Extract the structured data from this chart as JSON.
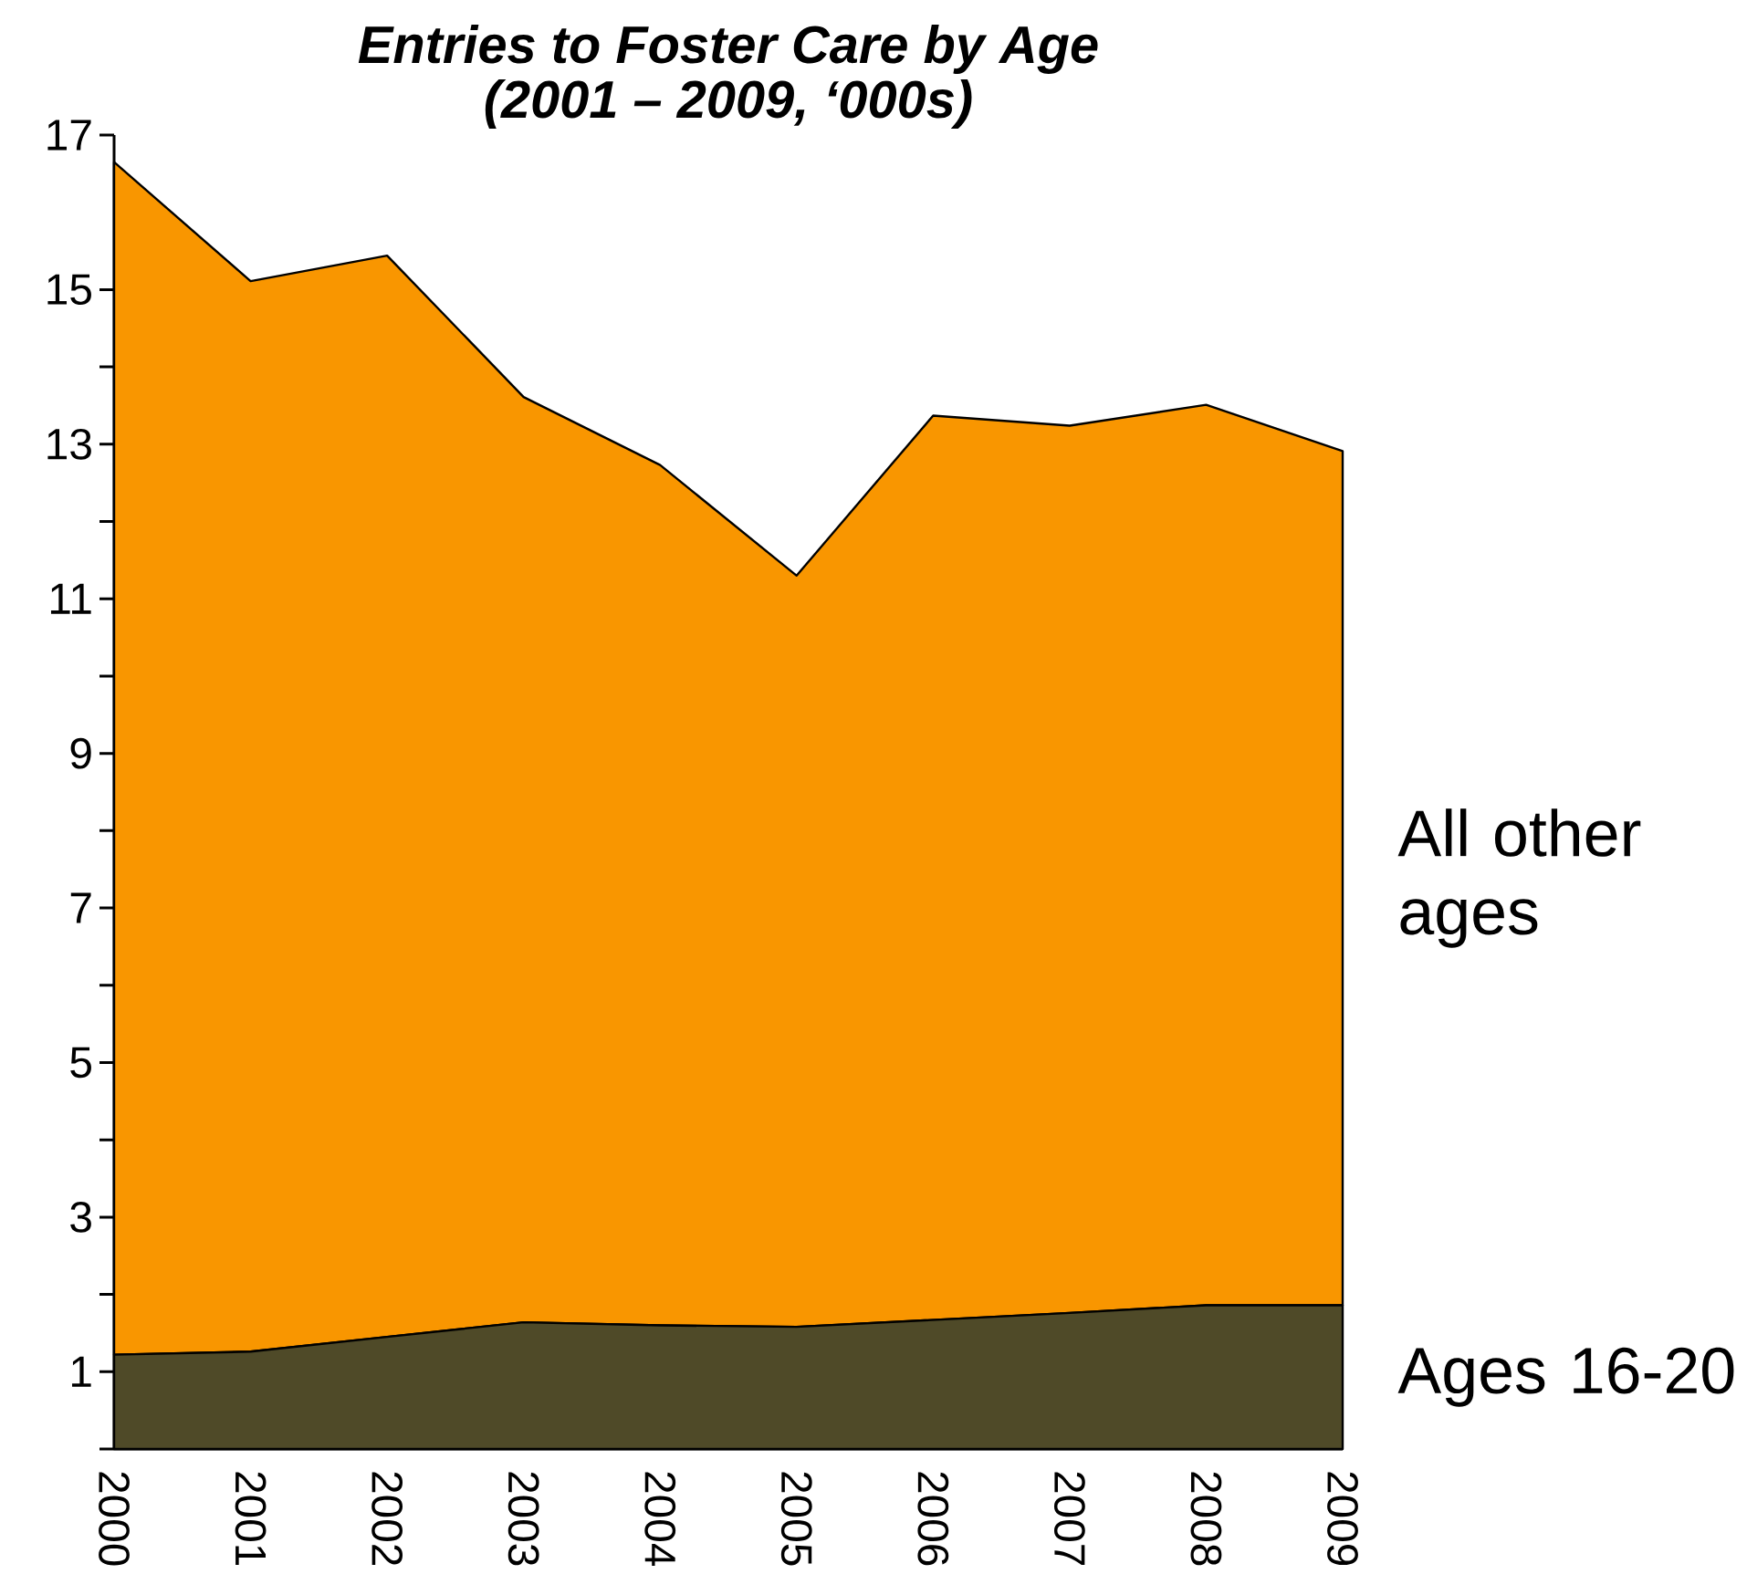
{
  "chart_data": {
    "type": "area",
    "title": "Entries to Foster Care by Age",
    "subtitle": "(2001 – 2009, ‘000s)",
    "categories": [
      "2000",
      "2001",
      "2002",
      "2003",
      "2004",
      "2005",
      "2006",
      "2007",
      "2008",
      "2009"
    ],
    "stacked": true,
    "series": [
      {
        "name": "Ages 16-20",
        "color": "#4f4a28",
        "values": [
          1.22,
          1.26,
          1.45,
          1.64,
          1.6,
          1.58,
          1.67,
          1.76,
          1.86,
          1.86
        ]
      },
      {
        "name": "All other ages",
        "color": "#f99600",
        "values": [
          15.43,
          13.85,
          13.99,
          11.97,
          11.13,
          9.72,
          11.7,
          11.48,
          11.65,
          11.05
        ]
      }
    ],
    "ylim": [
      0,
      17
    ],
    "yticks": [
      {
        "value": 0,
        "label": null
      },
      1,
      {
        "value": 2,
        "label": null
      },
      3,
      {
        "value": 4,
        "label": null
      },
      5,
      {
        "value": 6,
        "label": null
      },
      7,
      {
        "value": 8,
        "label": null
      },
      9,
      {
        "value": 10,
        "label": null
      },
      11,
      {
        "value": 12,
        "label": null
      },
      13,
      {
        "value": 14,
        "label": null
      },
      15,
      17
    ]
  }
}
